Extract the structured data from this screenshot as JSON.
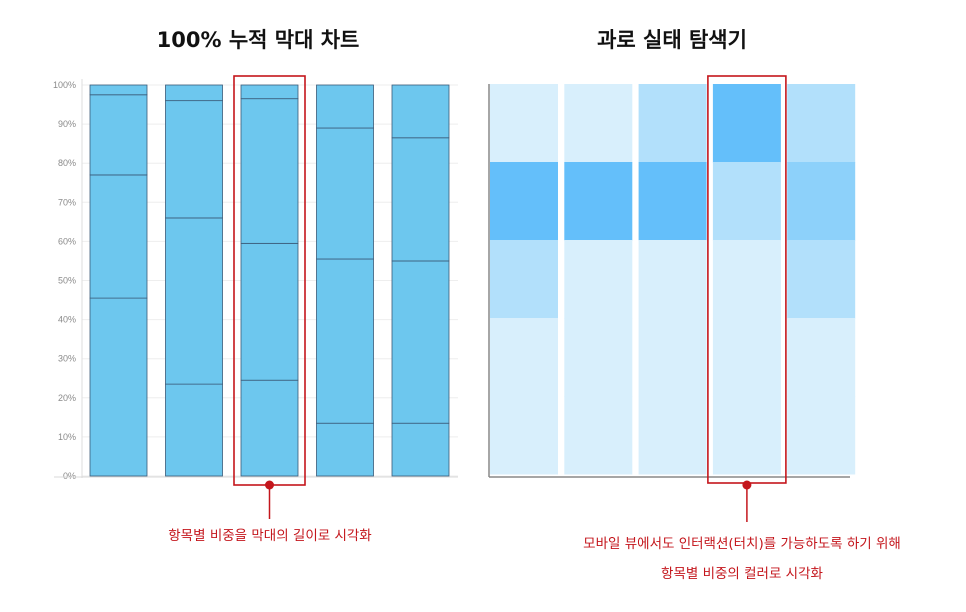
{
  "chart_data": [
    {
      "type": "bar",
      "stacked": true,
      "normalized": true,
      "title": "100% 누적 막대 차트",
      "y_ticks": [
        "100%",
        "90%",
        "80%",
        "70%",
        "60%",
        "50%",
        "40%",
        "30%",
        "20%",
        "10%",
        "0%"
      ],
      "ylim": [
        0,
        100
      ],
      "grid": true,
      "bar_color": "#6dc7ee",
      "edge_color": "#3a5a78",
      "highlight_color": "#c4161c",
      "highlighted_bar": 2,
      "bars": [
        {
          "boundaries": [
            45.5,
            77,
            97.5
          ]
        },
        {
          "boundaries": [
            23.5,
            66,
            96
          ]
        },
        {
          "boundaries": [
            24.5,
            59.5,
            96.5
          ]
        },
        {
          "boundaries": [
            13.5,
            55.5,
            89
          ]
        },
        {
          "boundaries": [
            13.5,
            55,
            86.5
          ]
        }
      ],
      "annotation": "항목별 비중을 막대의 길이로 시각화"
    },
    {
      "type": "heatmap",
      "title": "과로 실태 탐색기",
      "rows": 5,
      "columns": 5,
      "highlighted_column": 3,
      "highlight_color": "#c4161c",
      "palette": [
        "#d8effc",
        "#b2e0fb",
        "#8dd1fa",
        "#64bffa"
      ],
      "cells": [
        [
          0,
          0,
          1,
          3,
          1
        ],
        [
          3,
          3,
          3,
          1,
          2
        ],
        [
          1,
          0,
          0,
          0,
          1
        ],
        [
          0,
          0,
          0,
          0,
          0
        ],
        [
          0,
          0,
          0,
          0,
          0
        ]
      ],
      "annotation": [
        "모바일 뷰에서도 인터랙션(터치)를 가능하도록 하기 위해",
        "항목별 비중의 컬러로 시각화"
      ]
    }
  ]
}
